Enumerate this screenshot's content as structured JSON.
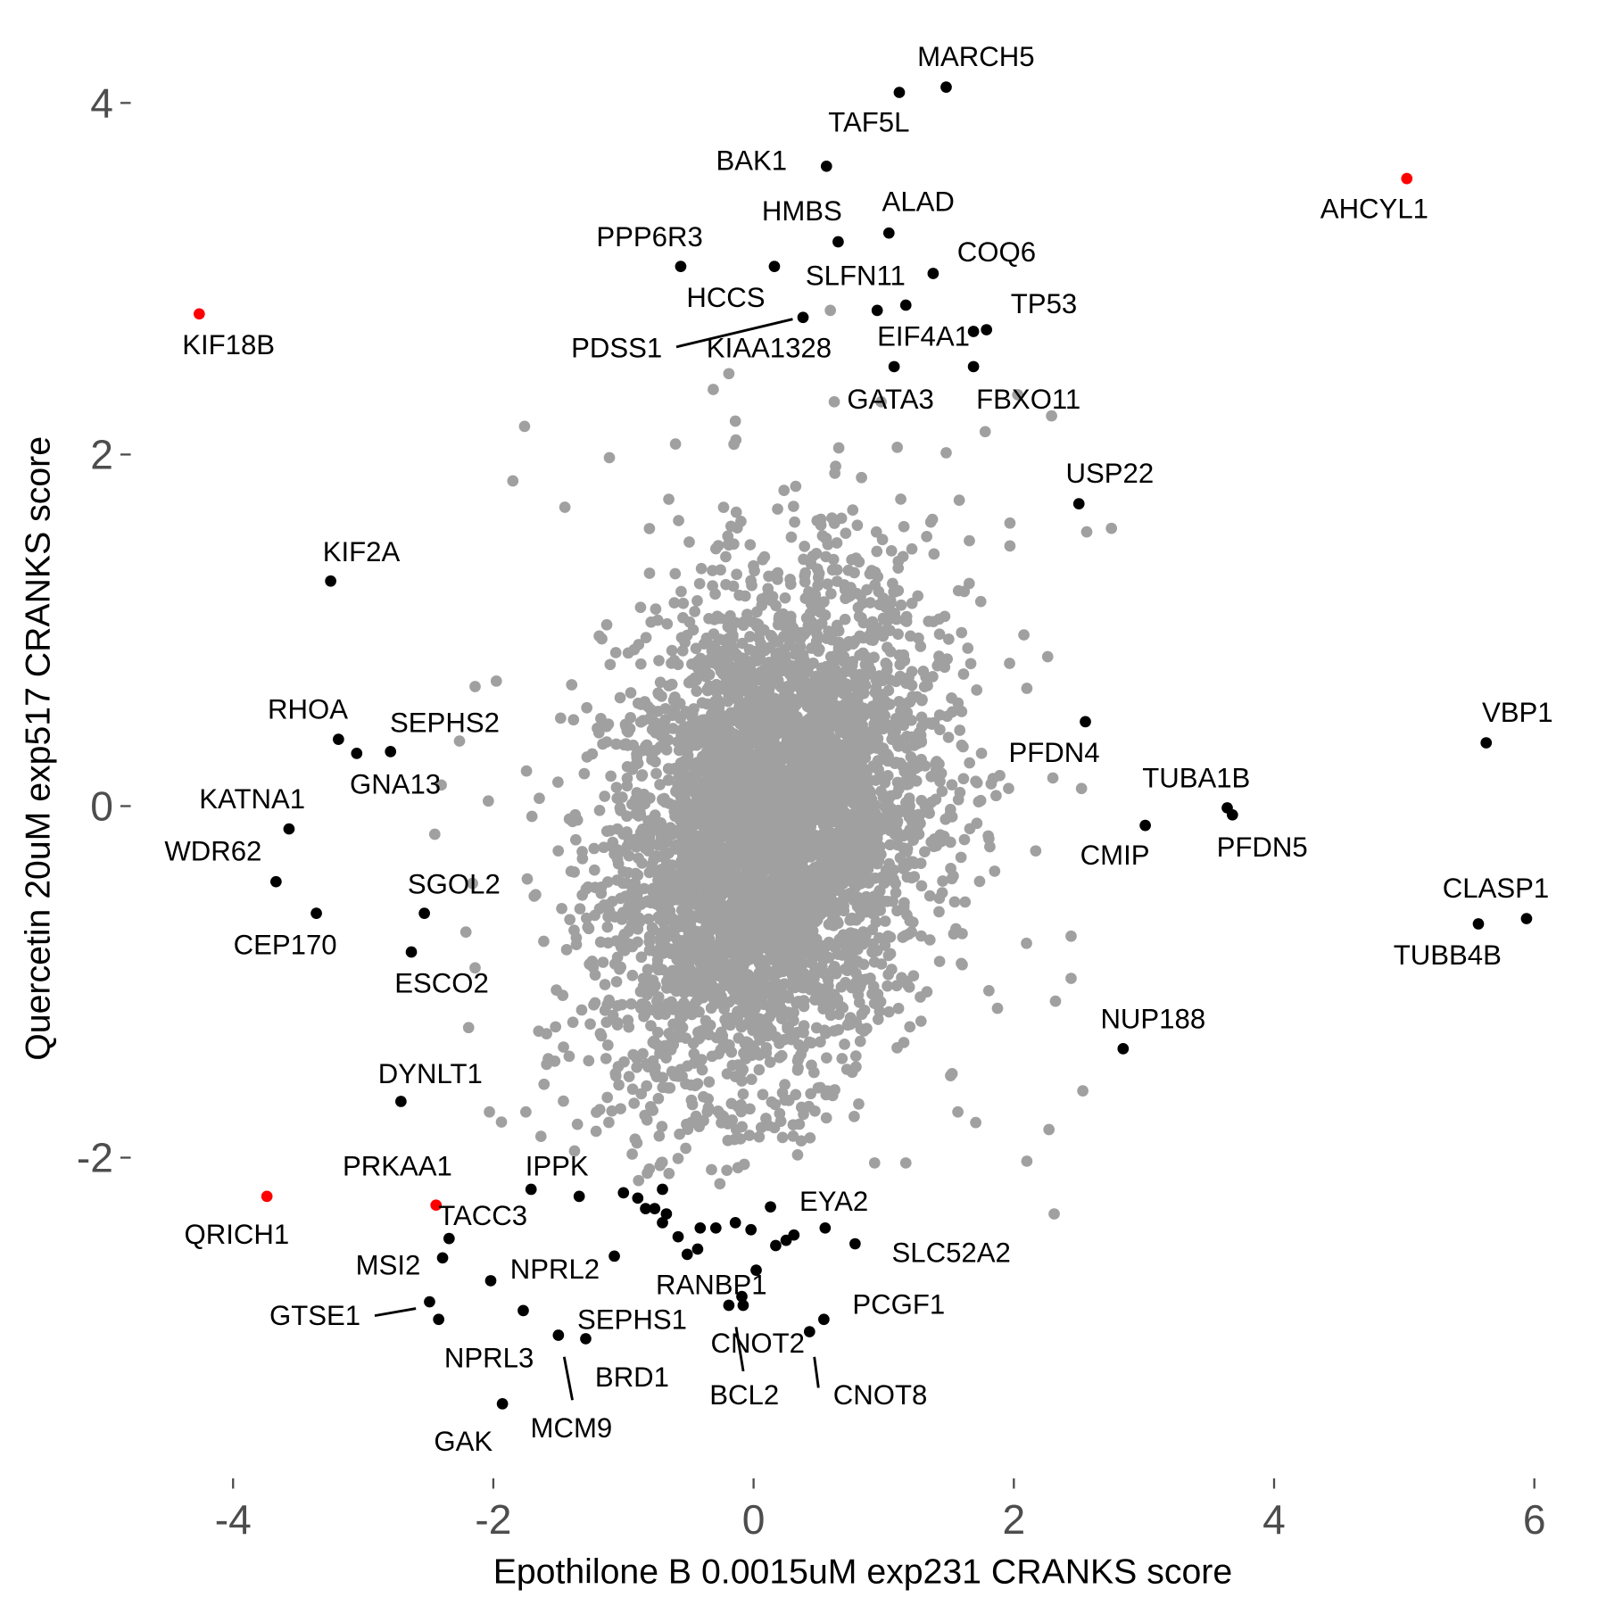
{
  "chart_data": {
    "type": "scatter",
    "title": "",
    "xlabel": "Epothilone B 0.0015uM exp231 CRANKS score",
    "ylabel": "Quercetin 20uM exp517 CRANKS score",
    "xlim": [
      -4.0,
      6.2
    ],
    "ylim": [
      -3.7,
      4.2
    ],
    "x_ticks": [
      -4,
      -2,
      0,
      2,
      4,
      6
    ],
    "y_ticks": [
      4,
      2,
      0,
      -2
    ],
    "grid": false,
    "legend": "none",
    "colors": {
      "background_genes": "#a0a0a0",
      "highlight": "#000000",
      "special": "#ff0000"
    },
    "labeled_points": [
      {
        "name": "MARCH5",
        "x": 1.48,
        "y": 4.09,
        "color": "black"
      },
      {
        "name": "TAF5L",
        "x": 1.12,
        "y": 4.06,
        "color": "black"
      },
      {
        "name": "BAK1",
        "x": 0.56,
        "y": 3.64,
        "color": "black"
      },
      {
        "name": "AHCYL1",
        "x": 5.02,
        "y": 3.57,
        "color": "red"
      },
      {
        "name": "ALAD",
        "x": 1.04,
        "y": 3.26,
        "color": "black"
      },
      {
        "name": "HMBS",
        "x": 0.65,
        "y": 3.21,
        "color": "black"
      },
      {
        "name": "COQ6",
        "x": 1.38,
        "y": 3.03,
        "color": "black"
      },
      {
        "name": "PPP6R3",
        "x": -0.56,
        "y": 3.07,
        "color": "black"
      },
      {
        "name": "HCCS",
        "x": 0.16,
        "y": 3.07,
        "color": "black"
      },
      {
        "name": "SLFN11",
        "x": 1.17,
        "y": 2.85,
        "color": "black"
      },
      {
        "name": "KIAA1328",
        "x": 0.95,
        "y": 2.82,
        "color": "black"
      },
      {
        "name": "PDSS1",
        "x": 0.38,
        "y": 2.78,
        "color": "black"
      },
      {
        "name": "TP53",
        "x": 1.79,
        "y": 2.71,
        "color": "black"
      },
      {
        "name": "EIF4A1",
        "x": 1.69,
        "y": 2.7,
        "color": "black"
      },
      {
        "name": "GATA3",
        "x": 1.08,
        "y": 2.5,
        "color": "black"
      },
      {
        "name": "FBXO11",
        "x": 1.69,
        "y": 2.5,
        "color": "black"
      },
      {
        "name": "KIF18B",
        "x": -4.26,
        "y": 2.8,
        "color": "red"
      },
      {
        "name": "USP22",
        "x": 2.5,
        "y": 1.72,
        "color": "black"
      },
      {
        "name": "KIF2A",
        "x": -3.25,
        "y": 1.28,
        "color": "black"
      },
      {
        "name": "PFDN4",
        "x": 2.55,
        "y": 0.48,
        "color": "black"
      },
      {
        "name": "VBP1",
        "x": 5.63,
        "y": 0.36,
        "color": "black"
      },
      {
        "name": "RHOA",
        "x": -3.19,
        "y": 0.38,
        "color": "black"
      },
      {
        "name": "GNA13",
        "x": -3.05,
        "y": 0.3,
        "color": "black"
      },
      {
        "name": "SEPHS2",
        "x": -2.79,
        "y": 0.31,
        "color": "black"
      },
      {
        "name": "TUBA1B",
        "x": 3.64,
        "y": -0.01,
        "color": "black"
      },
      {
        "name": "PFDN5",
        "x": 3.68,
        "y": -0.05,
        "color": "black"
      },
      {
        "name": "CMIP",
        "x": 3.01,
        "y": -0.11,
        "color": "black"
      },
      {
        "name": "KATNA1",
        "x": -3.57,
        "y": -0.13,
        "color": "black"
      },
      {
        "name": "WDR62",
        "x": -3.67,
        "y": -0.43,
        "color": "black"
      },
      {
        "name": "CEP170",
        "x": -3.36,
        "y": -0.61,
        "color": "black"
      },
      {
        "name": "SGOL2",
        "x": -2.53,
        "y": -0.61,
        "color": "black"
      },
      {
        "name": "CLASP1",
        "x": 5.94,
        "y": -0.64,
        "color": "black"
      },
      {
        "name": "TUBB4B",
        "x": 5.57,
        "y": -0.67,
        "color": "black"
      },
      {
        "name": "ESCO2",
        "x": -2.63,
        "y": -0.83,
        "color": "black"
      },
      {
        "name": "NUP188",
        "x": 2.84,
        "y": -1.38,
        "color": "black"
      },
      {
        "name": "DYNLT1",
        "x": -2.71,
        "y": -1.68,
        "color": "black"
      },
      {
        "name": "QRICH1",
        "x": -3.74,
        "y": -2.22,
        "color": "red"
      },
      {
        "name": "PRKAA1",
        "x": -1.71,
        "y": -2.18,
        "color": "black"
      },
      {
        "name": "IPPK",
        "x": -1.34,
        "y": -2.22,
        "color": "black"
      },
      {
        "name": "TACC3",
        "x": -2.44,
        "y": -2.27,
        "color": "red"
      },
      {
        "name": "MSI2",
        "x": -2.39,
        "y": -2.57,
        "color": "black"
      },
      {
        "name": "EYA2",
        "x": 0.13,
        "y": -2.28,
        "color": "black"
      },
      {
        "name": "SLC52A2",
        "x": 0.78,
        "y": -2.49,
        "color": "black"
      },
      {
        "name": "NPRL2",
        "x": -1.07,
        "y": -2.56,
        "color": "black"
      },
      {
        "name": "RANBP1",
        "x": 0.02,
        "y": -2.64,
        "color": "black"
      },
      {
        "name": "GTSE1",
        "x": -2.49,
        "y": -2.82,
        "color": "black"
      },
      {
        "name": "NPRL3",
        "x": -2.42,
        "y": -2.92,
        "color": "black"
      },
      {
        "name": "SEPHS1",
        "x": -1.77,
        "y": -2.87,
        "color": "black"
      },
      {
        "name": "BRD1",
        "x": -1.29,
        "y": -3.03,
        "color": "black"
      },
      {
        "name": "MCM9",
        "x": -1.5,
        "y": -3.01,
        "color": "black"
      },
      {
        "name": "GAK",
        "x": -1.93,
        "y": -3.4,
        "color": "black"
      },
      {
        "name": "PCGF1",
        "x": 0.54,
        "y": -2.92,
        "color": "black"
      },
      {
        "name": "CNOT2",
        "x": -0.19,
        "y": -2.84,
        "color": "black"
      },
      {
        "name": "BCL2",
        "x": -0.08,
        "y": -2.84,
        "color": "black"
      },
      {
        "name": "CNOT8",
        "x": 0.43,
        "y": -2.99,
        "color": "black"
      }
    ],
    "unlabeled_highlight_points": [
      [
        -2.34,
        -2.46
      ],
      [
        -2.02,
        -2.7
      ],
      [
        -0.7,
        -2.18
      ],
      [
        -1.0,
        -2.2
      ],
      [
        -0.89,
        -2.23
      ],
      [
        -0.83,
        -2.29
      ],
      [
        -0.76,
        -2.29
      ],
      [
        -0.67,
        -2.32
      ],
      [
        -0.7,
        -2.37
      ],
      [
        -0.58,
        -2.45
      ],
      [
        -0.41,
        -2.4
      ],
      [
        -0.29,
        -2.4
      ],
      [
        -0.14,
        -2.37
      ],
      [
        -0.02,
        -2.41
      ],
      [
        0.55,
        -2.4
      ],
      [
        0.31,
        -2.44
      ],
      [
        0.25,
        -2.47
      ],
      [
        0.17,
        -2.5
      ],
      [
        -0.43,
        -2.52
      ],
      [
        -0.51,
        -2.55
      ],
      [
        -0.09,
        -2.79
      ]
    ],
    "background_outliers": [
      [
        -0.31,
        2.37
      ],
      [
        -0.19,
        2.46
      ],
      [
        0.62,
        2.3
      ],
      [
        0.98,
        2.3
      ],
      [
        2.03,
        2.34
      ],
      [
        2.29,
        2.22
      ],
      [
        1.78,
        2.13
      ],
      [
        -1.76,
        2.16
      ],
      [
        1.48,
        2.01
      ],
      [
        -0.6,
        2.06
      ],
      [
        -1.85,
        1.85
      ],
      [
        2.75,
        1.58
      ],
      [
        2.56,
        1.56
      ],
      [
        1.97,
        1.61
      ],
      [
        1.97,
        1.48
      ],
      [
        2.26,
        0.85
      ],
      [
        2.1,
        0.67
      ],
      [
        2.52,
        0.1
      ],
      [
        2.3,
        0.16
      ],
      [
        2.44,
        -0.74
      ],
      [
        2.44,
        -0.98
      ],
      [
        2.32,
        -1.11
      ],
      [
        2.53,
        -1.62
      ],
      [
        2.27,
        -1.84
      ],
      [
        2.1,
        -2.02
      ],
      [
        2.31,
        -2.32
      ],
      [
        -2.14,
        0.68
      ],
      [
        -2.26,
        0.37
      ],
      [
        -2.4,
        0.12
      ],
      [
        -2.45,
        -0.16
      ],
      [
        -2.16,
        -0.44
      ],
      [
        -2.14,
        -0.92
      ],
      [
        -2.19,
        -1.26
      ],
      [
        -2.03,
        -1.74
      ],
      [
        -1.75,
        -1.74
      ],
      [
        0.59,
        2.82
      ],
      [
        -0.14,
        2.19
      ],
      [
        -1.45,
        1.7
      ],
      [
        -1.21,
        -1.85
      ],
      [
        -0.65,
        -2.09
      ],
      [
        0.93,
        -2.03
      ],
      [
        1.17,
        -2.03
      ],
      [
        1.57,
        -1.74
      ]
    ]
  }
}
